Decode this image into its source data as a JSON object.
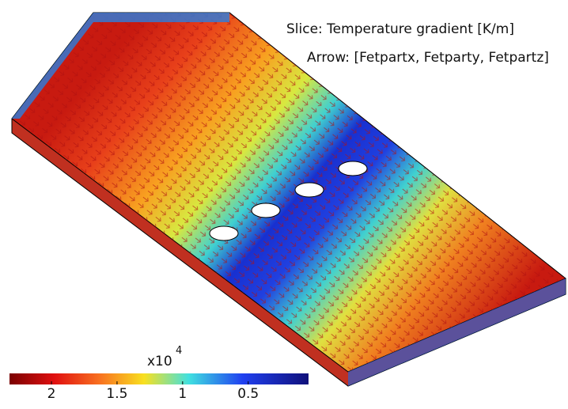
{
  "chart_data": {
    "type": "colorbar",
    "title": "Slice: Temperature gradient [K/m]",
    "subtitle": "Arrow: [Fetpartx, Fetparty, Fetpartz]",
    "multiplier": "x10",
    "exponent": "4",
    "xlim": [
      2.32,
      0.04
    ],
    "xticks": [
      2,
      1.5,
      1,
      0.5
    ]
  }
}
